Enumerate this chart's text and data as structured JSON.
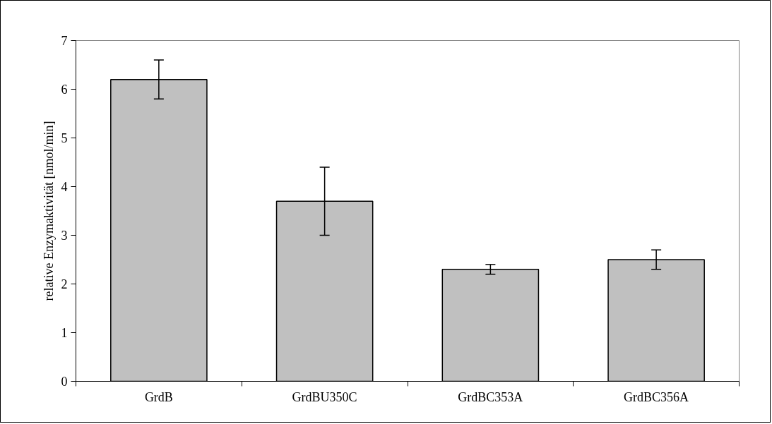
{
  "chart_data": {
    "type": "bar",
    "ylabel": "relative Enzymaktivität [nmol/min]",
    "categories": [
      "GrdB",
      "GrdBU350C",
      "GrdBC353A",
      "GrdBC356A"
    ],
    "values": [
      6.2,
      3.7,
      2.3,
      2.5
    ],
    "errors": [
      0.4,
      0.7,
      0.1,
      0.2
    ],
    "color": "#c0c0c0",
    "ylim": [
      0,
      7
    ],
    "yticks": [
      0,
      1,
      2,
      3,
      4,
      5,
      6,
      7
    ],
    "grid": false
  }
}
